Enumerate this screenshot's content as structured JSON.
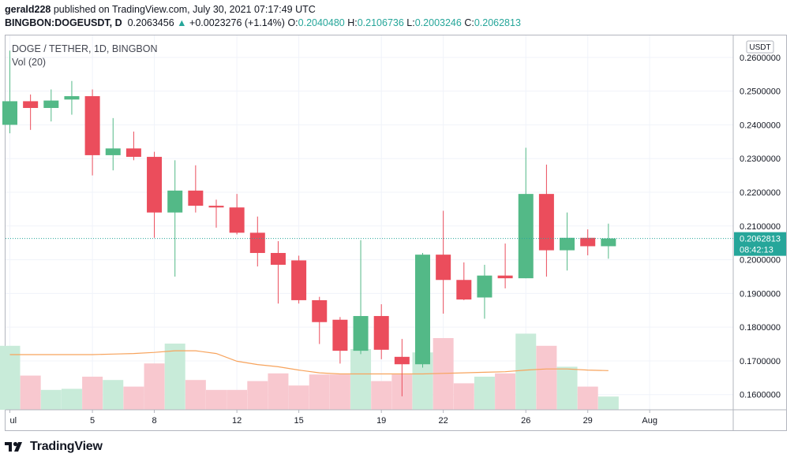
{
  "header": {
    "author": "gerald228",
    "published_text": "published on TradingView.com, July 30, 2021 07:17:49 UTC",
    "symbol": "BINGBON:DOGEUSDT, D",
    "last_price": "0.2063456",
    "change_arrow": "▲",
    "change": "+0.0023276 (+1.14%)",
    "o_label": "O:",
    "o_value": "0.2040480",
    "h_label": "H:",
    "h_value": "0.2106736",
    "l_label": "L:",
    "l_value": "0.2003246",
    "c_label": "C:",
    "c_value": "0.2062813"
  },
  "legend": {
    "title": "DOGE / TETHER, 1D, BINGBON",
    "volume_label": "Vol (20)"
  },
  "price_axis": {
    "currency": "USDT",
    "last_price_label": "0.2062813",
    "countdown": "08:42:13"
  },
  "footer": {
    "brand": "TradingView"
  },
  "colors": {
    "up": "#26a69a",
    "down": "#ef5350",
    "up_body": "#53b987",
    "down_body": "#eb4d5c",
    "vol_up": "#c8ebd9",
    "vol_down": "#f8c8cf",
    "ma_line": "#f7a35c"
  },
  "chart_data": {
    "type": "candlestick",
    "title": "DOGE / TETHER, 1D, BINGBON",
    "ylim": [
      0.1555,
      0.2665
    ],
    "y_ticks": [
      "0.1600000",
      "0.1700000",
      "0.1800000",
      "0.1900000",
      "0.2000000",
      "0.2100000",
      "0.2200000",
      "0.2300000",
      "0.2400000",
      "0.2500000",
      "0.2600000"
    ],
    "x_ticks": [
      {
        "day": 1,
        "label": "ul"
      },
      {
        "day": 5,
        "label": "5"
      },
      {
        "day": 8,
        "label": "8"
      },
      {
        "day": 12,
        "label": "12"
      },
      {
        "day": 15,
        "label": "15"
      },
      {
        "day": 19,
        "label": "19"
      },
      {
        "day": 22,
        "label": "22"
      },
      {
        "day": 26,
        "label": "26"
      },
      {
        "day": 29,
        "label": "29"
      },
      {
        "day": 32,
        "label": "Aug"
      }
    ],
    "candles": [
      {
        "day": 1,
        "o": 0.24,
        "h": 0.262,
        "l": 0.2375,
        "c": 0.247
      },
      {
        "day": 2,
        "o": 0.247,
        "h": 0.249,
        "l": 0.2385,
        "c": 0.245
      },
      {
        "day": 3,
        "o": 0.245,
        "h": 0.2505,
        "l": 0.241,
        "c": 0.2472
      },
      {
        "day": 4,
        "o": 0.2475,
        "h": 0.253,
        "l": 0.243,
        "c": 0.2485
      },
      {
        "day": 5,
        "o": 0.2485,
        "h": 0.2505,
        "l": 0.225,
        "c": 0.231
      },
      {
        "day": 6,
        "o": 0.231,
        "h": 0.242,
        "l": 0.2265,
        "c": 0.233
      },
      {
        "day": 7,
        "o": 0.233,
        "h": 0.238,
        "l": 0.2295,
        "c": 0.2305
      },
      {
        "day": 8,
        "o": 0.2305,
        "h": 0.232,
        "l": 0.2065,
        "c": 0.214
      },
      {
        "day": 9,
        "o": 0.214,
        "h": 0.2295,
        "l": 0.195,
        "c": 0.2205
      },
      {
        "day": 10,
        "o": 0.2205,
        "h": 0.228,
        "l": 0.214,
        "c": 0.216
      },
      {
        "day": 11,
        "o": 0.216,
        "h": 0.2178,
        "l": 0.2095,
        "c": 0.2155
      },
      {
        "day": 12,
        "o": 0.2155,
        "h": 0.2195,
        "l": 0.2075,
        "c": 0.208
      },
      {
        "day": 13,
        "o": 0.208,
        "h": 0.2128,
        "l": 0.198,
        "c": 0.202
      },
      {
        "day": 14,
        "o": 0.202,
        "h": 0.2055,
        "l": 0.187,
        "c": 0.1985
      },
      {
        "day": 15,
        "o": 0.1998,
        "h": 0.2012,
        "l": 0.187,
        "c": 0.188
      },
      {
        "day": 16,
        "o": 0.188,
        "h": 0.189,
        "l": 0.175,
        "c": 0.1815
      },
      {
        "day": 17,
        "o": 0.1822,
        "h": 0.183,
        "l": 0.1692,
        "c": 0.173
      },
      {
        "day": 18,
        "o": 0.173,
        "h": 0.2058,
        "l": 0.172,
        "c": 0.1833
      },
      {
        "day": 19,
        "o": 0.1833,
        "h": 0.1868,
        "l": 0.1705,
        "c": 0.1733
      },
      {
        "day": 20,
        "o": 0.1712,
        "h": 0.1765,
        "l": 0.1595,
        "c": 0.169
      },
      {
        "day": 21,
        "o": 0.169,
        "h": 0.202,
        "l": 0.168,
        "c": 0.2015
      },
      {
        "day": 22,
        "o": 0.2015,
        "h": 0.2145,
        "l": 0.184,
        "c": 0.194
      },
      {
        "day": 23,
        "o": 0.194,
        "h": 0.1992,
        "l": 0.188,
        "c": 0.1882
      },
      {
        "day": 24,
        "o": 0.1888,
        "h": 0.1985,
        "l": 0.1825,
        "c": 0.1953
      },
      {
        "day": 25,
        "o": 0.1953,
        "h": 0.2048,
        "l": 0.1915,
        "c": 0.1945
      },
      {
        "day": 26,
        "o": 0.1945,
        "h": 0.2332,
        "l": 0.1945,
        "c": 0.2195
      },
      {
        "day": 27,
        "o": 0.2195,
        "h": 0.2282,
        "l": 0.195,
        "c": 0.2028
      },
      {
        "day": 28,
        "o": 0.2028,
        "h": 0.214,
        "l": 0.1968,
        "c": 0.2065
      },
      {
        "day": 29,
        "o": 0.2065,
        "h": 0.209,
        "l": 0.2013,
        "c": 0.204
      },
      {
        "day": 30,
        "o": 0.204,
        "h": 0.2107,
        "l": 0.2003,
        "c": 0.2063
      }
    ],
    "volume": {
      "unit": "relative",
      "vmax": 100,
      "values": [
        58,
        31,
        18,
        19,
        30,
        27,
        21,
        42,
        60,
        27,
        18,
        18,
        26,
        33,
        22,
        32,
        32,
        55,
        26,
        32,
        52,
        65,
        24,
        30,
        33,
        69,
        58,
        39,
        21,
        12
      ],
      "ma20": [
        50,
        50,
        50,
        50,
        50,
        50.5,
        51,
        52,
        53.5,
        53.5,
        51,
        44,
        41,
        39,
        36,
        33.5,
        32.5,
        32.5,
        32.5,
        32.5,
        32.5,
        33,
        33.5,
        34,
        34.5,
        36,
        37,
        37,
        36,
        35.5
      ]
    }
  }
}
